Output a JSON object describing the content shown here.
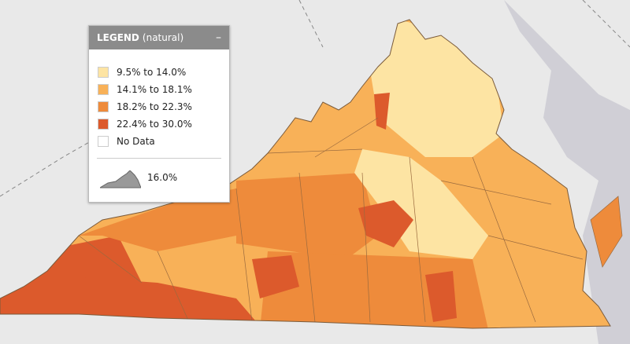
{
  "legend": {
    "title": "LEGEND",
    "subtitle": "(natural)",
    "items": [
      {
        "label": "9.5% to 14.0%",
        "color": "#fde4a3"
      },
      {
        "label": "14.1% to 18.1%",
        "color": "#f8b158"
      },
      {
        "label": "18.2% to 22.3%",
        "color": "#ee8b3b"
      },
      {
        "label": "22.4% to 30.0%",
        "color": "#dc5a2c"
      }
    ],
    "no_data": "No Data",
    "state_value_label": "16.0%"
  }
}
